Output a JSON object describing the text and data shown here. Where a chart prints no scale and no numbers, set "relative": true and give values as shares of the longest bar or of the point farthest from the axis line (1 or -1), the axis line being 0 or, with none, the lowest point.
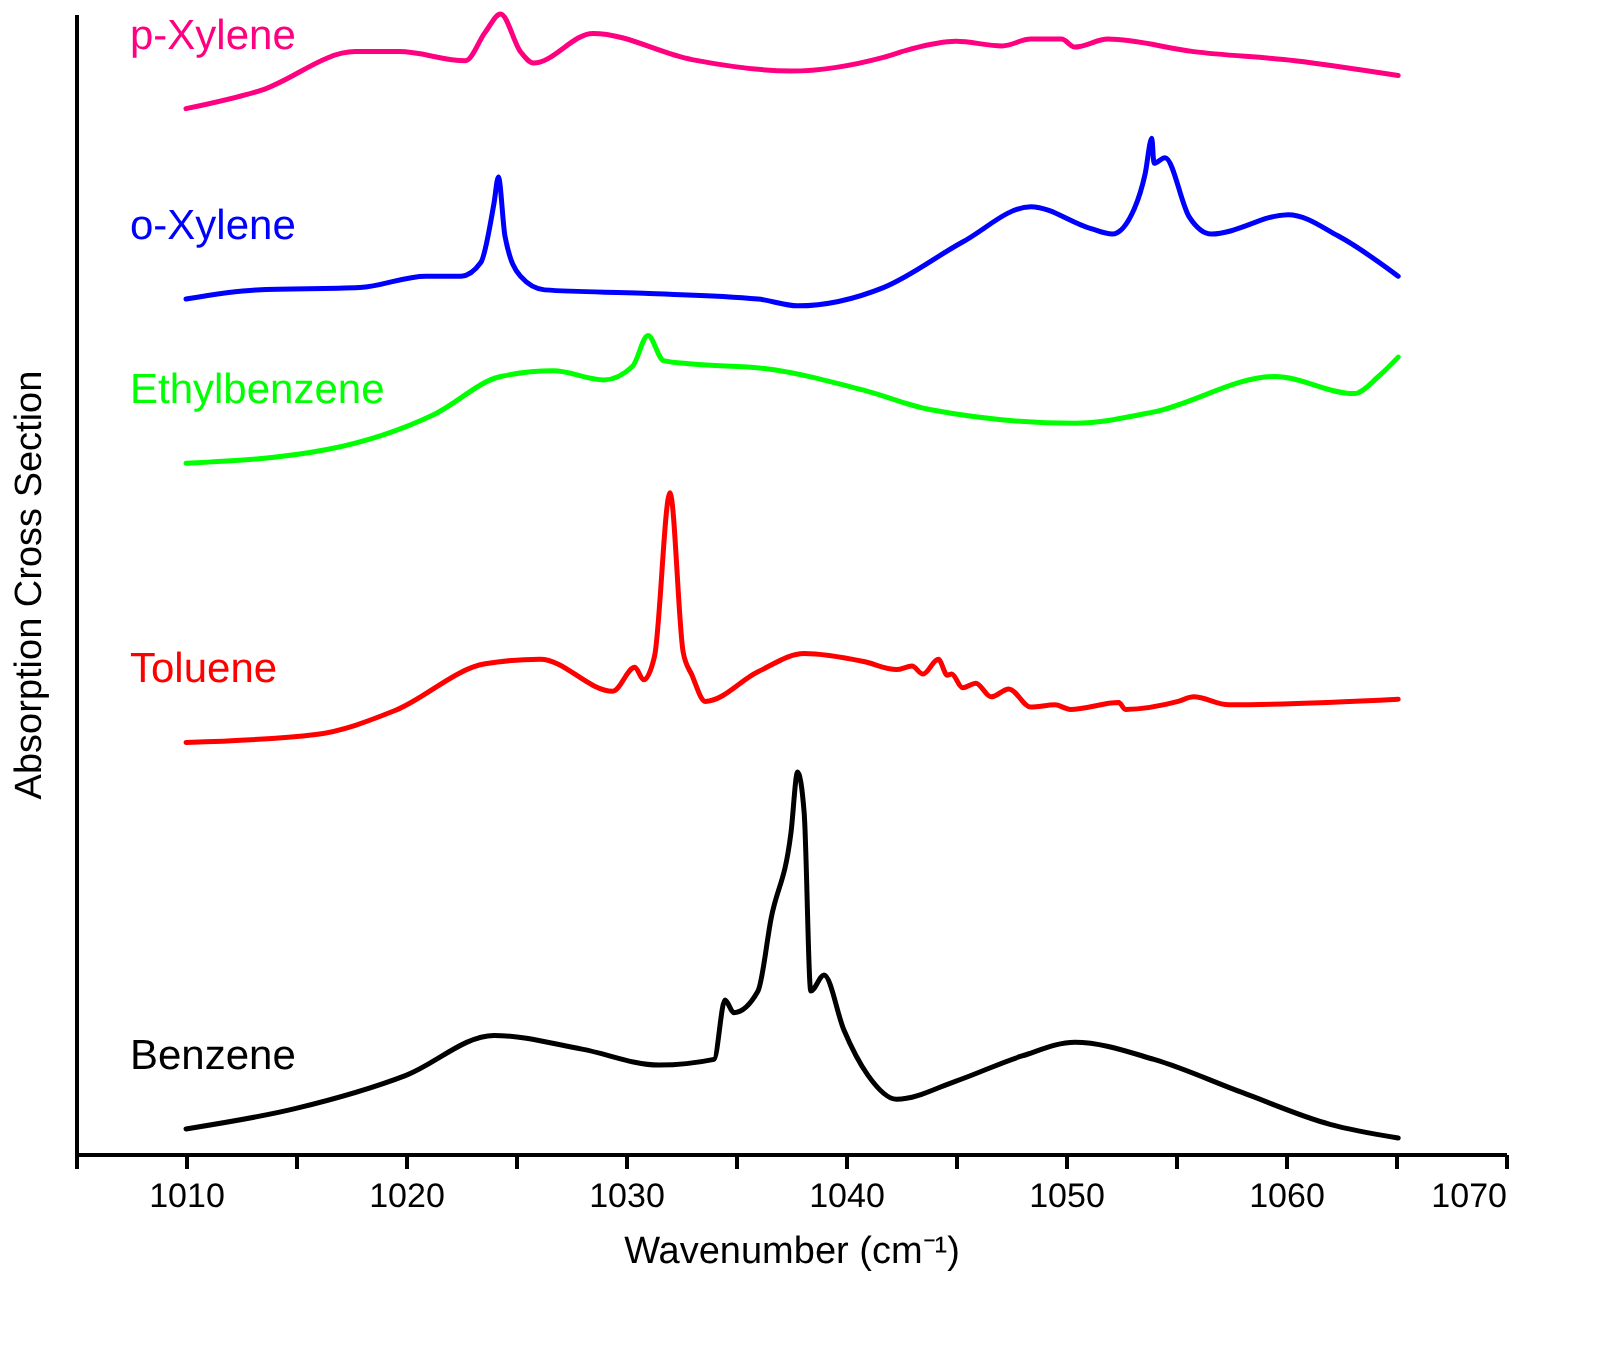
{
  "chart_data": {
    "type": "line",
    "relative": true,
    "xlabel": "Wavenumber (cm⁻¹)",
    "ylabel": "Absorption Cross Section",
    "xlim": [
      1005,
      1070
    ],
    "xticks": [
      {
        "value": 1005,
        "label": null
      },
      1010,
      {
        "value": 1015,
        "label": null
      },
      1020,
      {
        "value": 1025,
        "label": null
      },
      1030,
      {
        "value": 1035,
        "label": null
      },
      1040,
      {
        "value": 1045,
        "label": null
      },
      1050,
      {
        "value": 1055,
        "label": null
      },
      1060,
      {
        "value": 1065,
        "label": null
      },
      1070
    ],
    "tick_labels": "x",
    "legend": false,
    "grid": false,
    "marker": "none",
    "line_style": "solid",
    "series": [
      {
        "name": "Benzene",
        "color": "#000000",
        "x": [
          1010,
          1015,
          1020,
          1024,
          1028,
          1031.5,
          1034,
          1034.5,
          1034.9,
          1036,
          1036.6,
          1037.5,
          1037.8,
          1038.1,
          1038.4,
          1039.0,
          1039.9,
          1041,
          1042.3,
          1045,
          1048,
          1050.4,
          1054,
          1058,
          1062,
          1065.1
        ],
        "values": [
          0.022,
          0.04,
          0.069,
          0.104,
          0.092,
          0.078,
          0.083,
          0.135,
          0.124,
          0.143,
          0.207,
          0.282,
          0.335,
          0.299,
          0.143,
          0.157,
          0.109,
          0.069,
          0.048,
          0.064,
          0.086,
          0.098,
          0.083,
          0.054,
          0.026,
          0.014
        ]
      },
      {
        "name": "Toluene",
        "color": "#ff0000",
        "x": [
          1010,
          1015.9,
          1019.5,
          1023.6,
          1026.1,
          1029.4,
          1030.4,
          1030.8,
          1031.3,
          1032.0,
          1032.6,
          1033.0,
          1033.6,
          1036,
          1038.1,
          1040.8,
          1042.3,
          1043.0,
          1043.5,
          1044.2,
          1044.6,
          1044.8,
          1045.3,
          1045.9,
          1046.6,
          1047.4,
          1048.4,
          1049.5,
          1050.2,
          1052.4,
          1052.7,
          1055.1,
          1055.8,
          1057.4,
          1065.1
        ],
        "values": [
          0.361,
          0.368,
          0.389,
          0.43,
          0.434,
          0.406,
          0.427,
          0.416,
          0.437,
          0.58,
          0.44,
          0.42,
          0.397,
          0.423,
          0.439,
          0.432,
          0.425,
          0.428,
          0.421,
          0.434,
          0.42,
          0.421,
          0.409,
          0.413,
          0.401,
          0.408,
          0.392,
          0.394,
          0.39,
          0.396,
          0.39,
          0.397,
          0.401,
          0.394,
          0.399
        ]
      },
      {
        "name": "Ethylbenzene",
        "color": "#00ff00",
        "x": [
          1010,
          1016.4,
          1021.3,
          1024.3,
          1026.7,
          1029.0,
          1030.3,
          1031.0,
          1031.7,
          1033.0,
          1036.3,
          1040.8,
          1043.8,
          1050.4,
          1054.0,
          1059.5,
          1063.1,
          1064.2,
          1065.1
        ],
        "values": [
          0.606,
          0.618,
          0.649,
          0.682,
          0.687,
          0.679,
          0.691,
          0.718,
          0.696,
          0.693,
          0.689,
          0.67,
          0.653,
          0.641,
          0.651,
          0.682,
          0.667,
          0.682,
          0.699
        ]
      },
      {
        "name": "o-Xylene",
        "color": "#0000ff",
        "x": [
          1010,
          1013.2,
          1017.9,
          1020.9,
          1022.5,
          1023.4,
          1024.0,
          1024.2,
          1024.5,
          1025.2,
          1026.3,
          1030.8,
          1036.0,
          1037.8,
          1041.7,
          1045.3,
          1048.4,
          1051.1,
          1052.1,
          1053.1,
          1053.6,
          1053.9,
          1054.0,
          1054.5,
          1055.6,
          1056.6,
          1060.1,
          1062.4,
          1065.1
        ],
        "values": [
          0.75,
          0.758,
          0.76,
          0.77,
          0.77,
          0.782,
          0.834,
          0.857,
          0.805,
          0.77,
          0.758,
          0.755,
          0.75,
          0.744,
          0.76,
          0.8,
          0.831,
          0.812,
          0.807,
          0.829,
          0.86,
          0.891,
          0.869,
          0.874,
          0.822,
          0.807,
          0.824,
          0.805,
          0.77
        ]
      },
      {
        "name": "p-Xylene",
        "color": "#ff0080",
        "x": [
          1010,
          1013.4,
          1017.7,
          1019.7,
          1022.7,
          1023.6,
          1024.3,
          1025.2,
          1025.8,
          1028.5,
          1033.0,
          1037.5,
          1041.7,
          1042.9,
          1045.0,
          1047.1,
          1048.4,
          1049.8,
          1050.4,
          1051.9,
          1055.8,
          1060.4,
          1065.1
        ],
        "values": [
          0.917,
          0.933,
          0.967,
          0.967,
          0.959,
          0.984,
          1,
          0.967,
          0.957,
          0.983,
          0.96,
          0.95,
          0.962,
          0.969,
          0.976,
          0.972,
          0.978,
          0.978,
          0.971,
          0.978,
          0.967,
          0.959,
          0.946
        ]
      }
    ]
  }
}
